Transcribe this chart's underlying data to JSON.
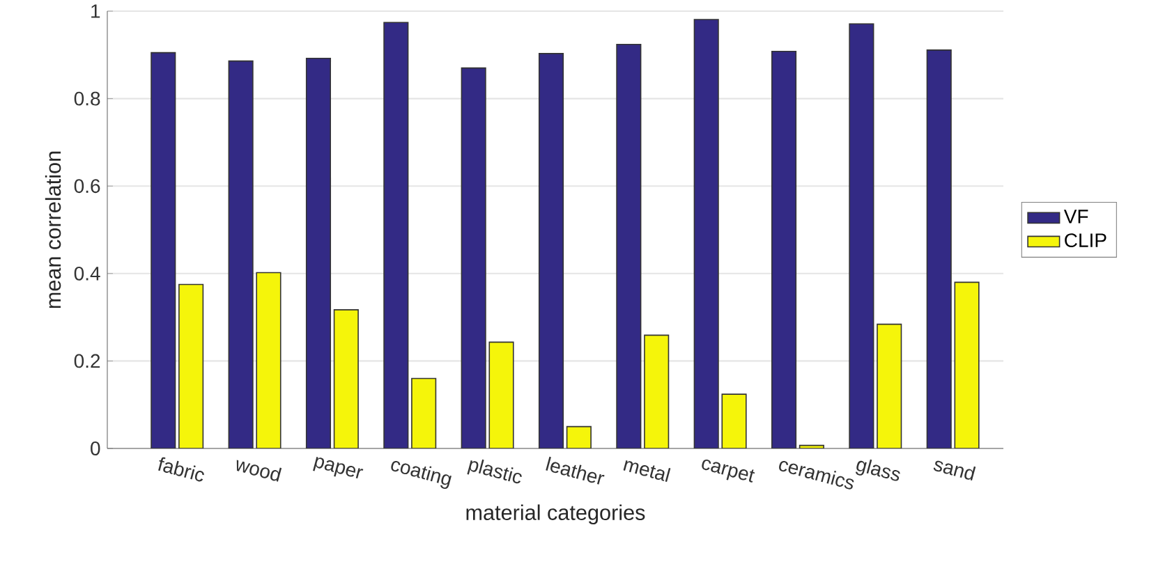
{
  "chart_data": {
    "type": "bar",
    "xlabel": "material categories",
    "ylabel": "mean correlation",
    "categories": [
      "fabric",
      "wood",
      "paper",
      "coating",
      "plastic",
      "leather",
      "metal",
      "carpet",
      "ceramics",
      "glass",
      "sand"
    ],
    "series": [
      {
        "name": "VF",
        "color": "#332a85",
        "values": [
          0.905,
          0.886,
          0.892,
          0.974,
          0.87,
          0.903,
          0.924,
          0.981,
          0.908,
          0.971,
          0.911
        ]
      },
      {
        "name": "CLIP",
        "color": "#f5f50a",
        "values": [
          0.375,
          0.402,
          0.317,
          0.16,
          0.243,
          0.05,
          0.259,
          0.124,
          0.007,
          0.284,
          0.38
        ]
      }
    ],
    "ylim": [
      0,
      1
    ],
    "yticks": [
      0,
      0.2,
      0.4,
      0.6,
      0.8,
      1
    ],
    "grid": "y",
    "legend": "right"
  }
}
